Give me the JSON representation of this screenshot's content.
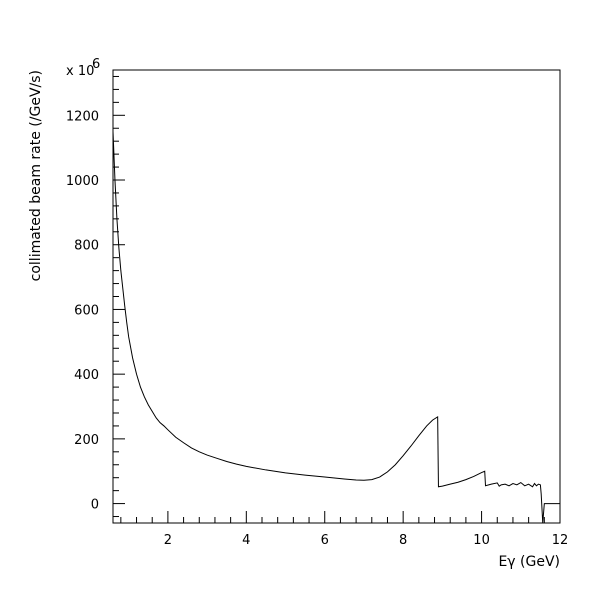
{
  "chart_data": {
    "type": "line",
    "title": "",
    "xlabel": "Eγ (GeV)",
    "ylabel": "collimated beam rate (/GeV/s)",
    "y_multiplier_label": "x 10",
    "y_multiplier_exponent": "6",
    "xlim": [
      0.6,
      12
    ],
    "ylim": [
      -60,
      1340
    ],
    "xticks": [
      2,
      4,
      6,
      8,
      10,
      12
    ],
    "yticks": [
      0,
      200,
      400,
      600,
      800,
      1000,
      1200
    ],
    "grid": false,
    "legend": "none",
    "series": [
      {
        "x": [
          0.6,
          0.65,
          0.7,
          0.75,
          0.8,
          0.85,
          0.9,
          0.95,
          1.0,
          1.1,
          1.2,
          1.3,
          1.4,
          1.5,
          1.6,
          1.7,
          1.8,
          1.9,
          2.0,
          2.2,
          2.4,
          2.6,
          2.8,
          3.0,
          3.25,
          3.5,
          3.75,
          4.0,
          4.5,
          5.0,
          5.5,
          6.0,
          6.5,
          6.8,
          7.0,
          7.2,
          7.4,
          7.6,
          7.8,
          8.0,
          8.2,
          8.4,
          8.6,
          8.75,
          8.88,
          8.9,
          9.0,
          9.2,
          9.4,
          9.6,
          9.8,
          10.0,
          10.08,
          10.1,
          10.25,
          10.4,
          10.45,
          10.5,
          10.6,
          10.7,
          10.8,
          10.9,
          11.0,
          11.1,
          11.2,
          11.3,
          11.35,
          11.4,
          11.45,
          11.5,
          11.52,
          11.56,
          11.6,
          11.65,
          12.0
        ],
        "values": [
          1150,
          1000,
          880,
          790,
          720,
          665,
          610,
          560,
          515,
          450,
          400,
          360,
          330,
          305,
          285,
          265,
          250,
          240,
          228,
          205,
          188,
          172,
          160,
          150,
          140,
          130,
          122,
          115,
          104,
          95,
          88,
          82,
          76,
          73,
          72,
          74,
          82,
          98,
          120,
          148,
          178,
          210,
          240,
          258,
          268,
          52,
          54,
          60,
          66,
          74,
          84,
          96,
          100,
          55,
          60,
          64,
          54,
          58,
          60,
          55,
          62,
          58,
          65,
          55,
          60,
          52,
          62,
          55,
          60,
          58,
          30,
          -60,
          0,
          0,
          0
        ]
      }
    ]
  }
}
